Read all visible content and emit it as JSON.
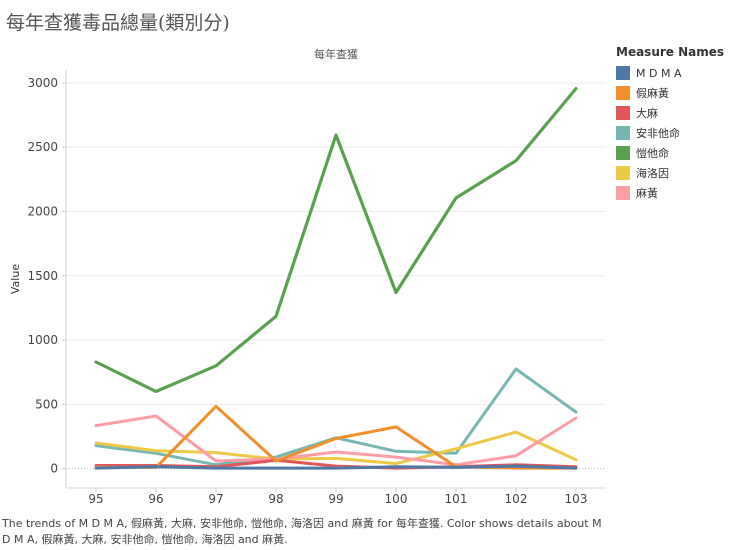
{
  "page": {
    "title": "每年查獲毒品總量(類別分)",
    "caption": "The trends of M D M A, 假麻黃, 大麻, 安非他命, 愷他命, 海洛因 and 麻黃 for 每年查獲.  Color shows details about M D M A, 假麻黃, 大麻, 安非他命, 愷他命, 海洛因 and 麻黃."
  },
  "legend": {
    "title": "Measure Names"
  },
  "chart_data": {
    "type": "line",
    "title": "每年查獲",
    "xlabel": "",
    "ylabel": "Value",
    "x": [
      "95",
      "96",
      "97",
      "98",
      "99",
      "100",
      "101",
      "102",
      "103"
    ],
    "yticks": [
      0,
      500,
      1000,
      1500,
      2000,
      2500,
      3000
    ],
    "ylim": [
      -150,
      3100
    ],
    "grid": true,
    "legend_position": "right",
    "series": [
      {
        "name": "M D M A",
        "color": "#4e79a7",
        "values": [
          5,
          15,
          5,
          5,
          5,
          15,
          10,
          20,
          5
        ]
      },
      {
        "name": "假麻黃",
        "color": "#f28e2b",
        "values": [
          10,
          10,
          485,
          60,
          235,
          325,
          15,
          5,
          5
        ]
      },
      {
        "name": "大麻",
        "color": "#e15759",
        "values": [
          25,
          25,
          15,
          65,
          20,
          5,
          15,
          30,
          15
        ]
      },
      {
        "name": "安非他命",
        "color": "#76b7b2",
        "values": [
          180,
          120,
          30,
          90,
          240,
          135,
          120,
          775,
          440
        ]
      },
      {
        "name": "愷他命",
        "color": "#59a14f",
        "values": [
          830,
          600,
          800,
          1185,
          2595,
          1370,
          2105,
          2395,
          2955
        ]
      },
      {
        "name": "海洛因",
        "color": "#edc948",
        "values": [
          200,
          140,
          125,
          75,
          80,
          40,
          155,
          285,
          70
        ]
      },
      {
        "name": "麻黃",
        "color": "#ff9da7",
        "values": [
          335,
          410,
          60,
          75,
          130,
          90,
          30,
          100,
          395
        ]
      }
    ]
  }
}
